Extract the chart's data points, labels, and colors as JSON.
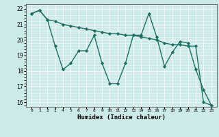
{
  "xlabel": "Humidex (Indice chaleur)",
  "x": [
    0,
    1,
    2,
    3,
    4,
    5,
    6,
    7,
    8,
    9,
    10,
    11,
    12,
    13,
    14,
    15,
    16,
    17,
    18,
    19,
    20,
    21,
    22,
    23
  ],
  "line1": [
    21.7,
    21.9,
    21.3,
    21.2,
    21.0,
    20.9,
    20.8,
    20.7,
    20.6,
    20.5,
    20.4,
    20.4,
    20.3,
    20.3,
    20.2,
    20.1,
    20.0,
    19.8,
    19.7,
    19.7,
    19.6,
    19.6,
    16.0,
    15.8
  ],
  "line2": [
    21.7,
    21.9,
    21.3,
    19.6,
    18.1,
    18.5,
    19.3,
    19.3,
    20.3,
    18.5,
    17.2,
    17.2,
    18.5,
    20.3,
    20.3,
    21.7,
    20.2,
    18.3,
    19.2,
    19.9,
    19.8,
    18.1,
    16.8,
    15.8
  ],
  "ylim": [
    15.7,
    22.3
  ],
  "yticks": [
    16,
    17,
    18,
    19,
    20,
    21,
    22
  ],
  "bg_color": "#cceae8",
  "line_color": "#1e6e64",
  "grid_color": "#e8f8f8",
  "marker": "D",
  "marker_size": 2.2,
  "line_width": 1.0
}
